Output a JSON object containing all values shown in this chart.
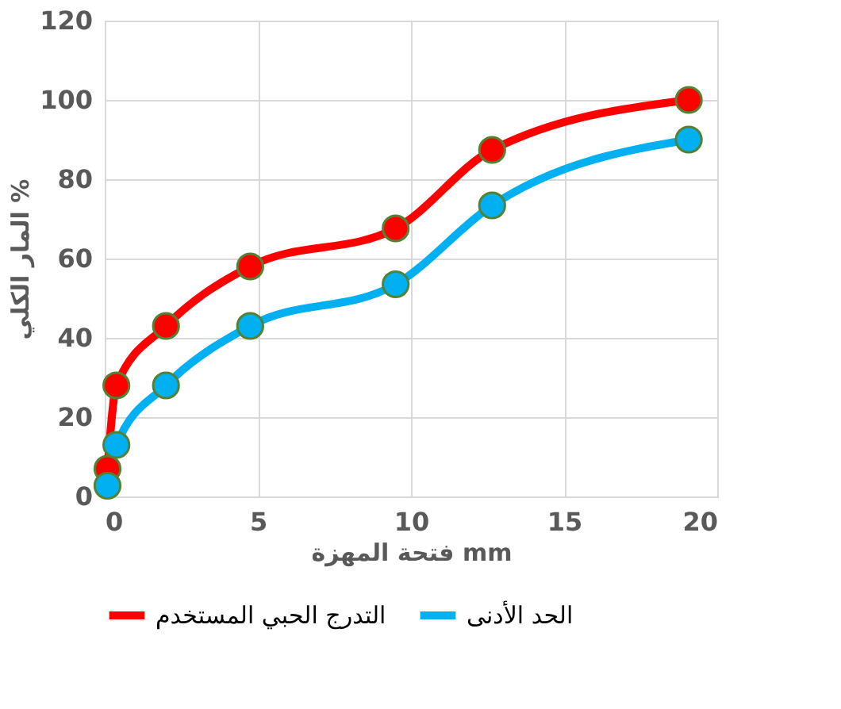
{
  "chart_data": {
    "type": "line",
    "xlabel": "فتحة المهزة mm",
    "ylabel": "المار الكلي %",
    "xlim": [
      0,
      20
    ],
    "xticks": [
      0,
      5,
      10,
      15,
      20
    ],
    "ylim": [
      0,
      120
    ],
    "yticks": [
      0,
      20,
      40,
      60,
      80,
      100,
      120
    ],
    "grid": true,
    "legend": "bottom",
    "marker": "circle",
    "line_style": "solid",
    "series": [
      {
        "name": "التدرج الحبي المستخدم",
        "color": "#ff0000",
        "x": [
          0.09,
          0.38,
          2.0,
          4.75,
          9.5,
          12.65,
          19.07
        ],
        "values": [
          7,
          28,
          43,
          58,
          67.6,
          87.4,
          100
        ]
      },
      {
        "name": "الحد الأدنى",
        "color": "#00b0f0",
        "x": [
          0.09,
          0.38,
          2.0,
          4.75,
          9.5,
          12.65,
          19.07
        ],
        "values": [
          2.7,
          13,
          28,
          43,
          53.5,
          73.4,
          90
        ]
      }
    ]
  }
}
